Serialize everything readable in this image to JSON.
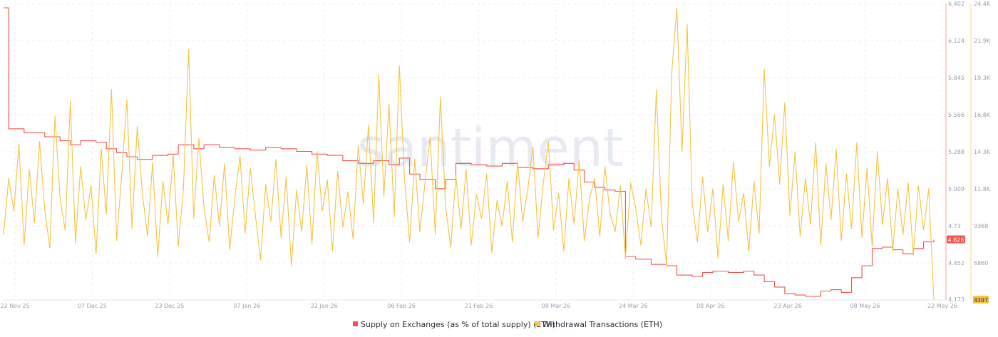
{
  "watermark": "santiment",
  "chart_data": {
    "type": "line",
    "grid": true,
    "legend": "bottom-center",
    "x_ticks": [
      "22 Nov 25",
      "07 Dec 25",
      "23 Dec 25",
      "07 Jan 26",
      "22 Jan 26",
      "06 Feb 26",
      "21 Feb 26",
      "08 Mar 26",
      "24 Mar 26",
      "08 Apr 26",
      "23 Apr 26",
      "08 May 26",
      "22 May 26"
    ],
    "x_range": [
      "2025-11-22",
      "2026-05-22"
    ],
    "left_axis": {
      "series": "Supply on Exchanges (as % of total supply) (ETH)",
      "ticks": [
        "6.402",
        "6.124",
        "5.845",
        "5.566",
        "5.288",
        "5.009",
        "4.73",
        "4.452",
        "4.173"
      ],
      "range": [
        4.173,
        6.402
      ],
      "last_value_label": "4.626"
    },
    "right_axis": {
      "series": "Withdrawal Transactions (ETH)",
      "ticks": [
        "24.4K",
        "21.9K",
        "19.3K",
        "16.8K",
        "14.3K",
        "11.8K",
        "9368",
        "6860",
        "4397"
      ],
      "range": [
        4397,
        24400
      ],
      "last_value_label": "4397"
    },
    "series": [
      {
        "name": "Supply on Exchanges (as % of total supply) (ETH)",
        "color": "#f0544f",
        "axis": "left",
        "points": [
          [
            "2025-11-22",
            6.37
          ],
          [
            "2025-11-23",
            5.46
          ],
          [
            "2025-11-26",
            5.43
          ],
          [
            "2025-11-30",
            5.4
          ],
          [
            "2025-12-03",
            5.37
          ],
          [
            "2025-12-05",
            5.34
          ],
          [
            "2025-12-07",
            5.37
          ],
          [
            "2025-12-10",
            5.36
          ],
          [
            "2025-12-12",
            5.31
          ],
          [
            "2025-12-14",
            5.28
          ],
          [
            "2025-12-16",
            5.25
          ],
          [
            "2025-12-18",
            5.23
          ],
          [
            "2025-12-21",
            5.26
          ],
          [
            "2025-12-24",
            5.27
          ],
          [
            "2025-12-26",
            5.34
          ],
          [
            "2025-12-29",
            5.31
          ],
          [
            "2025-12-31",
            5.34
          ],
          [
            "2026-01-03",
            5.32
          ],
          [
            "2026-01-06",
            5.31
          ],
          [
            "2026-01-09",
            5.3
          ],
          [
            "2026-01-12",
            5.32
          ],
          [
            "2026-01-15",
            5.31
          ],
          [
            "2026-01-18",
            5.29
          ],
          [
            "2026-01-21",
            5.27
          ],
          [
            "2026-01-24",
            5.26
          ],
          [
            "2026-01-27",
            5.22
          ],
          [
            "2026-01-30",
            5.2
          ],
          [
            "2026-02-02",
            5.22
          ],
          [
            "2026-02-05",
            5.19
          ],
          [
            "2026-02-07",
            5.24
          ],
          [
            "2026-02-09",
            5.12
          ],
          [
            "2026-02-11",
            5.08
          ],
          [
            "2026-02-14",
            5.01
          ],
          [
            "2026-02-16",
            5.08
          ],
          [
            "2026-02-18",
            5.2
          ],
          [
            "2026-02-21",
            5.19
          ],
          [
            "2026-02-24",
            5.18
          ],
          [
            "2026-02-27",
            5.2
          ],
          [
            "2026-03-02",
            5.17
          ],
          [
            "2026-03-05",
            5.16
          ],
          [
            "2026-03-08",
            5.19
          ],
          [
            "2026-03-11",
            5.2
          ],
          [
            "2026-03-13",
            5.15
          ],
          [
            "2026-03-15",
            5.06
          ],
          [
            "2026-03-17",
            5.02
          ],
          [
            "2026-03-19",
            5.0
          ],
          [
            "2026-03-21",
            4.99
          ],
          [
            "2026-03-23",
            4.5
          ],
          [
            "2026-03-25",
            4.48
          ],
          [
            "2026-03-28",
            4.44
          ],
          [
            "2026-03-31",
            4.43
          ],
          [
            "2026-04-02",
            4.36
          ],
          [
            "2026-04-05",
            4.35
          ],
          [
            "2026-04-07",
            4.38
          ],
          [
            "2026-04-09",
            4.39
          ],
          [
            "2026-04-12",
            4.38
          ],
          [
            "2026-04-15",
            4.39
          ],
          [
            "2026-04-17",
            4.36
          ],
          [
            "2026-04-19",
            4.31
          ],
          [
            "2026-04-21",
            4.27
          ],
          [
            "2026-04-23",
            4.22
          ],
          [
            "2026-04-25",
            4.21
          ],
          [
            "2026-04-27",
            4.2
          ],
          [
            "2026-04-30",
            4.24
          ],
          [
            "2026-05-02",
            4.25
          ],
          [
            "2026-05-04",
            4.23
          ],
          [
            "2026-05-06",
            4.34
          ],
          [
            "2026-05-08",
            4.43
          ],
          [
            "2026-05-10",
            4.56
          ],
          [
            "2026-05-12",
            4.57
          ],
          [
            "2026-05-14",
            4.55
          ],
          [
            "2026-05-16",
            4.52
          ],
          [
            "2026-05-18",
            4.56
          ],
          [
            "2026-05-20",
            4.61
          ],
          [
            "2026-05-22",
            4.626
          ]
        ]
      },
      {
        "name": "Withdrawal Transactions (ETH)",
        "color": "#f6c342",
        "axis": "right",
        "points": [
          [
            "2025-11-22",
            8800
          ],
          [
            "2025-11-23",
            12600
          ],
          [
            "2025-11-24",
            10400
          ],
          [
            "2025-11-25",
            14900
          ],
          [
            "2025-11-26",
            8100
          ],
          [
            "2025-11-27",
            13200
          ],
          [
            "2025-11-28",
            9600
          ],
          [
            "2025-11-29",
            15100
          ],
          [
            "2025-11-30",
            10500
          ],
          [
            "2025-12-01",
            7900
          ],
          [
            "2025-12-02",
            16800
          ],
          [
            "2025-12-03",
            11200
          ],
          [
            "2025-12-04",
            9100
          ],
          [
            "2025-12-05",
            17800
          ],
          [
            "2025-12-06",
            8200
          ],
          [
            "2025-12-07",
            13400
          ],
          [
            "2025-12-08",
            9800
          ],
          [
            "2025-12-09",
            12100
          ],
          [
            "2025-12-10",
            7500
          ],
          [
            "2025-12-11",
            14600
          ],
          [
            "2025-12-12",
            10200
          ],
          [
            "2025-12-13",
            18600
          ],
          [
            "2025-12-14",
            8400
          ],
          [
            "2025-12-15",
            12900
          ],
          [
            "2025-12-16",
            17900
          ],
          [
            "2025-12-17",
            9200
          ],
          [
            "2025-12-18",
            16100
          ],
          [
            "2025-12-19",
            11600
          ],
          [
            "2025-12-20",
            8700
          ],
          [
            "2025-12-21",
            13700
          ],
          [
            "2025-12-22",
            7300
          ],
          [
            "2025-12-23",
            12400
          ],
          [
            "2025-12-24",
            9500
          ],
          [
            "2025-12-25",
            14200
          ],
          [
            "2025-12-26",
            8000
          ],
          [
            "2025-12-27",
            11900
          ],
          [
            "2025-12-28",
            21300
          ],
          [
            "2025-12-29",
            9900
          ],
          [
            "2025-12-30",
            15300
          ],
          [
            "2025-12-31",
            10600
          ],
          [
            "2026-01-01",
            8300
          ],
          [
            "2026-01-02",
            12800
          ],
          [
            "2026-01-03",
            9400
          ],
          [
            "2026-01-04",
            13600
          ],
          [
            "2026-01-05",
            7800
          ],
          [
            "2026-01-06",
            11300
          ],
          [
            "2026-01-07",
            14100
          ],
          [
            "2026-01-08",
            8900
          ],
          [
            "2026-01-09",
            13300
          ],
          [
            "2026-01-10",
            10100
          ],
          [
            "2026-01-11",
            7100
          ],
          [
            "2026-01-12",
            12200
          ],
          [
            "2026-01-13",
            9700
          ],
          [
            "2026-01-14",
            13900
          ],
          [
            "2026-01-15",
            8600
          ],
          [
            "2026-01-16",
            12700
          ],
          [
            "2026-01-17",
            6700
          ],
          [
            "2026-01-18",
            11800
          ],
          [
            "2026-01-19",
            9000
          ],
          [
            "2026-01-20",
            13500
          ],
          [
            "2026-01-21",
            8200
          ],
          [
            "2026-01-22",
            14400
          ],
          [
            "2026-01-23",
            10400
          ],
          [
            "2026-01-24",
            12500
          ],
          [
            "2026-01-25",
            7700
          ],
          [
            "2026-01-26",
            13100
          ],
          [
            "2026-01-27",
            9300
          ],
          [
            "2026-01-28",
            11700
          ],
          [
            "2026-01-29",
            8500
          ],
          [
            "2026-01-30",
            14800
          ],
          [
            "2026-01-31",
            10900
          ],
          [
            "2026-02-01",
            16200
          ],
          [
            "2026-02-02",
            9600
          ],
          [
            "2026-02-03",
            19600
          ],
          [
            "2026-02-04",
            11400
          ],
          [
            "2026-02-05",
            17600
          ],
          [
            "2026-02-06",
            10000
          ],
          [
            "2026-02-07",
            20200
          ],
          [
            "2026-02-08",
            12600
          ],
          [
            "2026-02-09",
            8300
          ],
          [
            "2026-02-10",
            13900
          ],
          [
            "2026-02-11",
            9000
          ],
          [
            "2026-02-12",
            12300
          ],
          [
            "2026-02-13",
            15400
          ],
          [
            "2026-02-14",
            8800
          ],
          [
            "2026-02-15",
            18100
          ],
          [
            "2026-02-16",
            10700
          ],
          [
            "2026-02-17",
            7900
          ],
          [
            "2026-02-18",
            12800
          ],
          [
            "2026-02-19",
            9200
          ],
          [
            "2026-02-20",
            13200
          ],
          [
            "2026-02-21",
            8100
          ],
          [
            "2026-02-22",
            11500
          ],
          [
            "2026-02-23",
            9900
          ],
          [
            "2026-02-24",
            12900
          ],
          [
            "2026-02-25",
            7600
          ],
          [
            "2026-02-26",
            11100
          ],
          [
            "2026-02-27",
            9400
          ],
          [
            "2026-02-28",
            12400
          ],
          [
            "2026-03-01",
            8300
          ],
          [
            "2026-03-02",
            13700
          ],
          [
            "2026-03-03",
            9700
          ],
          [
            "2026-03-04",
            11900
          ],
          [
            "2026-03-05",
            14700
          ],
          [
            "2026-03-06",
            8600
          ],
          [
            "2026-03-07",
            12200
          ],
          [
            "2026-03-08",
            15100
          ],
          [
            "2026-03-09",
            9100
          ],
          [
            "2026-03-10",
            11600
          ],
          [
            "2026-03-11",
            7700
          ],
          [
            "2026-03-12",
            12600
          ],
          [
            "2026-03-13",
            9500
          ],
          [
            "2026-03-14",
            13800
          ],
          [
            "2026-03-15",
            8400
          ],
          [
            "2026-03-16",
            11200
          ],
          [
            "2026-03-17",
            12600
          ],
          [
            "2026-03-18",
            8700
          ],
          [
            "2026-03-19",
            13400
          ],
          [
            "2026-03-20",
            10200
          ],
          [
            "2026-03-21",
            9000
          ],
          [
            "2026-03-22",
            12100
          ],
          [
            "2026-03-23",
            7200
          ],
          [
            "2026-03-24",
            12300
          ],
          [
            "2026-03-25",
            10600
          ],
          [
            "2026-03-26",
            8100
          ],
          [
            "2026-03-27",
            11900
          ],
          [
            "2026-03-28",
            9300
          ],
          [
            "2026-03-29",
            18600
          ],
          [
            "2026-03-30",
            10000
          ],
          [
            "2026-03-31",
            6700
          ],
          [
            "2026-04-01",
            19700
          ],
          [
            "2026-04-02",
            24100
          ],
          [
            "2026-04-03",
            14400
          ],
          [
            "2026-04-04",
            23000
          ],
          [
            "2026-04-05",
            10900
          ],
          [
            "2026-04-06",
            8300
          ],
          [
            "2026-04-07",
            12700
          ],
          [
            "2026-04-08",
            9000
          ],
          [
            "2026-04-09",
            11900
          ],
          [
            "2026-04-10",
            7200
          ],
          [
            "2026-04-11",
            12200
          ],
          [
            "2026-04-12",
            8400
          ],
          [
            "2026-04-13",
            13700
          ],
          [
            "2026-04-14",
            9700
          ],
          [
            "2026-04-15",
            11600
          ],
          [
            "2026-04-16",
            7700
          ],
          [
            "2026-04-17",
            12400
          ],
          [
            "2026-04-18",
            8900
          ],
          [
            "2026-04-19",
            20000
          ],
          [
            "2026-04-20",
            13400
          ],
          [
            "2026-04-21",
            16900
          ],
          [
            "2026-04-22",
            12200
          ],
          [
            "2026-04-23",
            17700
          ],
          [
            "2026-04-24",
            10100
          ],
          [
            "2026-04-25",
            14400
          ],
          [
            "2026-04-26",
            8700
          ],
          [
            "2026-04-27",
            12600
          ],
          [
            "2026-04-28",
            9500
          ],
          [
            "2026-04-29",
            15000
          ],
          [
            "2026-04-30",
            8100
          ],
          [
            "2026-05-01",
            13600
          ],
          [
            "2026-05-02",
            9800
          ],
          [
            "2026-05-03",
            14600
          ],
          [
            "2026-05-04",
            8400
          ],
          [
            "2026-05-05",
            12900
          ],
          [
            "2026-05-06",
            9200
          ],
          [
            "2026-05-07",
            15000
          ],
          [
            "2026-05-08",
            8600
          ],
          [
            "2026-05-09",
            13300
          ],
          [
            "2026-05-10",
            8000
          ],
          [
            "2026-05-11",
            14400
          ],
          [
            "2026-05-12",
            9500
          ],
          [
            "2026-05-13",
            12600
          ],
          [
            "2026-05-14",
            7700
          ],
          [
            "2026-05-15",
            11900
          ],
          [
            "2026-05-16",
            8800
          ],
          [
            "2026-05-17",
            12300
          ],
          [
            "2026-05-18",
            7400
          ],
          [
            "2026-05-19",
            12100
          ],
          [
            "2026-05-20",
            9100
          ],
          [
            "2026-05-21",
            11900
          ],
          [
            "2026-05-22",
            4397
          ]
        ]
      }
    ]
  }
}
